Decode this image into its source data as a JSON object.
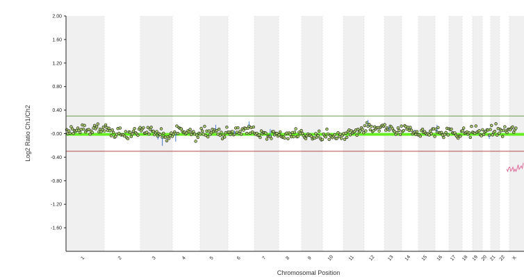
{
  "chart_data": {
    "type": "scatter",
    "title": "",
    "xlabel": "Chromosomal Position",
    "ylabel": "Log2 Ratio Ch1/Ch2",
    "ylim": [
      -2.0,
      2.0
    ],
    "yticks": [
      "2.00",
      "1.60",
      "1.20",
      "0.80",
      "0.40",
      "-0.00",
      "-0.40",
      "-0.80",
      "-1.20",
      "-1.60"
    ],
    "ytick_values": [
      2.0,
      1.6,
      1.2,
      0.8,
      0.4,
      0.0,
      -0.4,
      -0.8,
      -1.2,
      -1.6
    ],
    "chromosomes": [
      "1",
      "2",
      "3",
      "4",
      "5",
      "6",
      "7",
      "8",
      "9",
      "10",
      "11",
      "12",
      "13",
      "14",
      "15",
      "16",
      "17",
      "18",
      "19",
      "20",
      "21",
      "22",
      "X"
    ],
    "thresholds": {
      "upper": 0.3,
      "lower": -0.3,
      "upper_color": "#6a9a4a",
      "lower_color": "#b04a4a"
    },
    "baseline": {
      "value": 0.0,
      "color": "#66ee22"
    },
    "series": [
      {
        "type": "scatter",
        "approx_mean_value": 0.02,
        "spread": 0.12,
        "point_fill": "#a6c86a",
        "point_stroke": "#111111"
      }
    ],
    "x_segment": {
      "chromosome": "X",
      "approx_value": -0.62,
      "color": "#e06a9a"
    },
    "shading_color": "#f0f0f0",
    "grid": false
  }
}
